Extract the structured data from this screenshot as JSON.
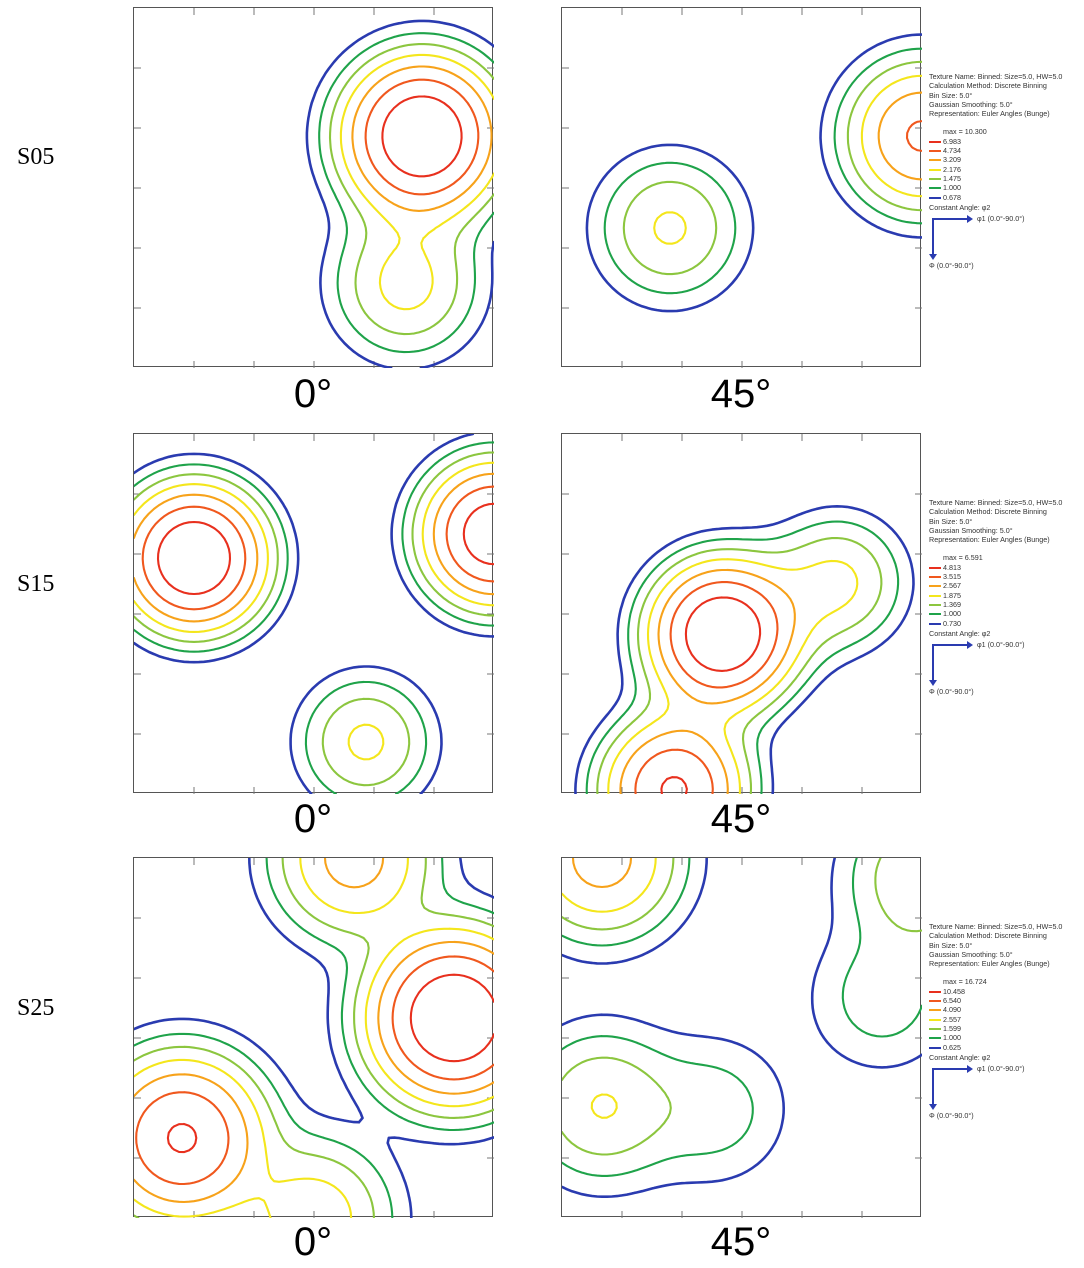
{
  "rows": [
    {
      "label": "S05",
      "angles": [
        "0°",
        "45°"
      ],
      "legend": {
        "meta": [
          "Texture Name: Binned: Size=5.0, HW=5.0",
          "Calculation Method: Discrete Binning",
          "Bin Size: 5.0°",
          "Gaussian Smoothing: 5.0°",
          "Representation: Euler Angles (Bunge)"
        ],
        "max": "max = 10.300",
        "levels": [
          "6.983",
          "4.734",
          "3.209",
          "2.176",
          "1.475",
          "1.000",
          "0.678"
        ],
        "constant": "Constant Angle: φ2",
        "x_axis": "φ1 (0.0°-90.0°)",
        "y_axis": "Φ (0.0°-90.0°)"
      }
    },
    {
      "label": "S15",
      "angles": [
        "0°",
        "45°"
      ],
      "legend": {
        "meta": [
          "Texture Name: Binned: Size=5.0, HW=5.0",
          "Calculation Method: Discrete Binning",
          "Bin Size: 5.0°",
          "Gaussian Smoothing: 5.0°",
          "Representation: Euler Angles (Bunge)"
        ],
        "max": "max = 6.591",
        "levels": [
          "4.813",
          "3.515",
          "2.567",
          "1.875",
          "1.369",
          "1.000",
          "0.730"
        ],
        "constant": "Constant Angle: φ2",
        "x_axis": "φ1 (0.0°-90.0°)",
        "y_axis": "Φ (0.0°-90.0°)"
      }
    },
    {
      "label": "S25",
      "angles": [
        "0°",
        "45°"
      ],
      "legend": {
        "meta": [
          "Texture Name: Binned: Size=5.0, HW=5.0",
          "Calculation Method: Discrete Binning",
          "Bin Size: 5.0°",
          "Gaussian Smoothing: 5.0°",
          "Representation: Euler Angles (Bunge)"
        ],
        "max": "max = 16.724",
        "levels": [
          "10.458",
          "6.540",
          "4.090",
          "2.557",
          "1.599",
          "1.000",
          "0.625"
        ],
        "constant": "Constant Angle: φ2",
        "x_axis": "φ1 (0.0°-90.0°)",
        "y_axis": "Φ (0.0°-90.0°)"
      }
    }
  ],
  "level_colors": [
    "#e8301e",
    "#f0581e",
    "#f7a21a",
    "#f4e61c",
    "#8cc63f",
    "#1fa34a",
    "#2a3bb0"
  ],
  "chart_data": {
    "type": "contour",
    "description_axes": {
      "x": "φ1",
      "x_range": [
        0,
        90
      ],
      "y": "Φ",
      "y_range": [
        0,
        90
      ]
    },
    "panels": [
      {
        "sample": "S05",
        "phi2": "0°",
        "peaks": [
          {
            "phi1": 72,
            "Phi": 32,
            "value": 10.3
          },
          {
            "phi1": 68,
            "Phi": 69,
            "value": 2.5
          }
        ]
      },
      {
        "sample": "S05",
        "phi2": "45°",
        "peaks": [
          {
            "phi1": 27,
            "Phi": 55,
            "value": 2.3
          },
          {
            "phi1": 90,
            "Phi": 32,
            "value": 5.0
          }
        ]
      },
      {
        "sample": "S15",
        "phi2": "0°",
        "peaks": [
          {
            "phi1": 15,
            "Phi": 31,
            "value": 6.591
          },
          {
            "phi1": 90,
            "Phi": 25,
            "value": 6.0
          },
          {
            "phi1": 58,
            "Phi": 77,
            "value": 2.0
          }
        ]
      },
      {
        "sample": "S15",
        "phi2": "45°",
        "peaks": [
          {
            "phi1": 40,
            "Phi": 50,
            "value": 6.591
          },
          {
            "phi1": 28,
            "Phi": 89,
            "value": 5.0
          },
          {
            "phi1": 69,
            "Phi": 37,
            "value": 2.0
          }
        ]
      },
      {
        "sample": "S25",
        "phi2": "0°",
        "peaks": [
          {
            "phi1": 80,
            "Phi": 40,
            "value": 16.724
          },
          {
            "phi1": 12,
            "Phi": 70,
            "value": 11.0
          },
          {
            "phi1": 45,
            "Phi": 90,
            "value": 3.5
          },
          {
            "phi1": 55,
            "Phi": 0,
            "value": 5.0
          }
        ]
      },
      {
        "sample": "S25",
        "phi2": "45°",
        "peaks": [
          {
            "phi1": 10,
            "Phi": 0,
            "value": 5.0
          },
          {
            "phi1": 10,
            "Phi": 62,
            "value": 2.6
          },
          {
            "phi1": 38,
            "Phi": 63,
            "value": 1.3
          },
          {
            "phi1": 80,
            "Phi": 35,
            "value": 1.3
          },
          {
            "phi1": 90,
            "Phi": 5,
            "value": 2.5
          }
        ]
      }
    ]
  }
}
